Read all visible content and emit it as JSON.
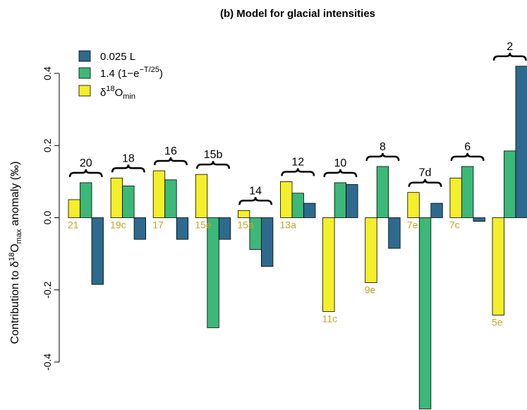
{
  "chart_data": {
    "type": "bar",
    "title": "(b)  Model for glacial intensities",
    "ylabel": "Contribution to δ¹⁸Oₘₐₓ anomaly (‰)",
    "ylabel_parts": {
      "pre": "Contribution to δ",
      "sup": "18",
      "mid": "O",
      "sub": "max",
      "post": " anomaly (‰)"
    },
    "ylim": [
      -0.53,
      0.45
    ],
    "yticks": [
      -0.4,
      -0.2,
      0.0,
      0.2,
      0.4
    ],
    "ytick_labels": [
      "-0.4",
      "-0.2",
      "0.0",
      "0.2",
      "0.4"
    ],
    "grid": false,
    "legend_position": "top-left",
    "colors": {
      "0.025 L": "#2e6a8e",
      "1.4": "#3cb878",
      "d18Omin": "#f5ee2a",
      "substage_label": "#c8a227"
    },
    "series": [
      {
        "name": "0.025 L",
        "color": "#2e6a8e",
        "legend": {
          "text": "0.025 L"
        },
        "values": [
          -0.185,
          -0.06,
          -0.06,
          -0.06,
          -0.135,
          0.04,
          0.092,
          -0.085,
          0.04,
          -0.01,
          0.42
        ]
      },
      {
        "name": "1.4 (1−e⁻ᵀᐟ²⁵)",
        "color": "#3cb878",
        "legend": {
          "text": "1.4 (1−e",
          "sup": "−T/25",
          "post": ")"
        },
        "values": [
          0.097,
          0.088,
          0.105,
          -0.305,
          -0.088,
          0.068,
          0.097,
          0.142,
          -0.53,
          0.142,
          0.185
        ]
      },
      {
        "name": "δ¹⁸Oₘᵢₙ",
        "color": "#f5ee2a",
        "legend": {
          "text": "δ",
          "sup": "18",
          "mid": "O",
          "sub": "min"
        },
        "values": [
          0.05,
          0.11,
          0.13,
          0.12,
          0.02,
          0.1,
          -0.26,
          -0.18,
          0.07,
          0.11,
          -0.27
        ]
      }
    ],
    "categories": [
      "20",
      "18",
      "16",
      "15b",
      "14",
      "12",
      "10",
      "8",
      "7d",
      "6",
      "2"
    ],
    "substage_labels": [
      "21",
      "19c",
      "17",
      "15e",
      "15a",
      "13a",
      "11c",
      "9e",
      "7e",
      "7c",
      "5e"
    ]
  }
}
